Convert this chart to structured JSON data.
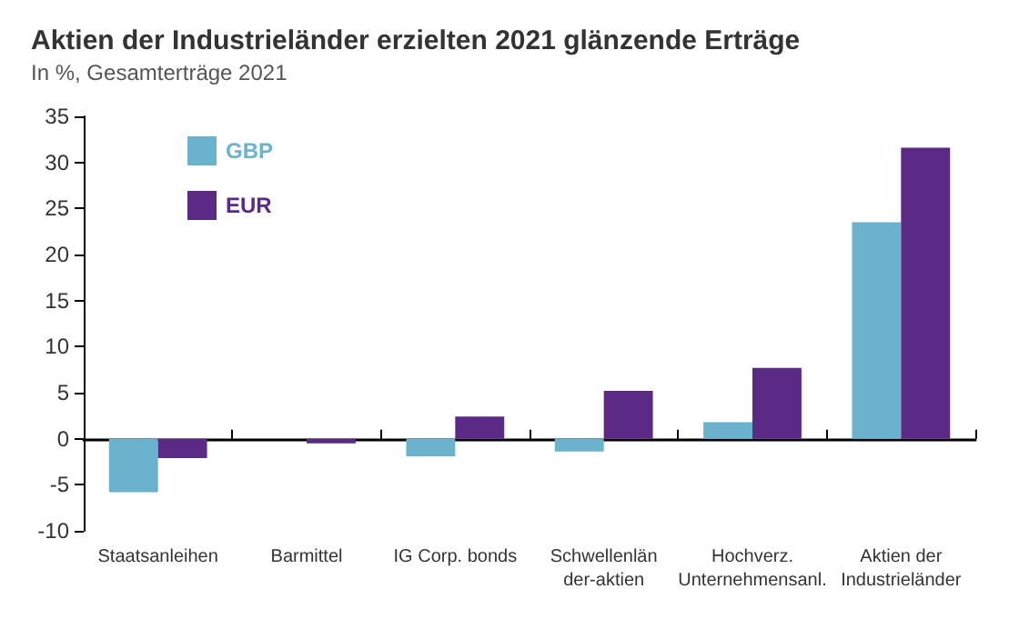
{
  "chart_data": {
    "type": "bar",
    "title": "Aktien der Industrieländer erzielten 2021 glänzende Erträge",
    "subtitle": "In %, Gesamterträge 2021",
    "categories": [
      "Staatsanleihen",
      "Barmittel",
      "IG Corp. bonds",
      "Schwellenlän\nder-aktien",
      "Hochverz.\nUnternehmensanl.",
      "Aktien der\nIndustrieländer"
    ],
    "series": [
      {
        "name": "GBP",
        "color": "#6bb3cc",
        "values": [
          -5.8,
          0,
          -1.9,
          -1.4,
          1.8,
          23.5
        ]
      },
      {
        "name": "EUR",
        "color": "#5a2a85",
        "values": [
          -2.1,
          -0.5,
          2.4,
          5.2,
          7.7,
          31.6
        ]
      }
    ],
    "ylim": [
      -10,
      35
    ],
    "yticks": [
      -10,
      -5,
      0,
      5,
      10,
      15,
      20,
      25,
      30,
      35
    ],
    "legend": "top left"
  }
}
